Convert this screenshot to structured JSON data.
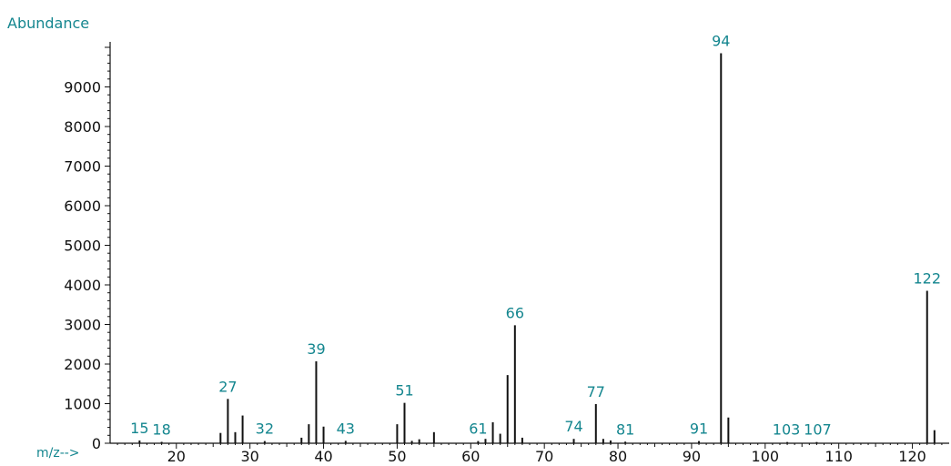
{
  "chart_data": {
    "type": "bar",
    "ylabel": "Abundance",
    "xlabel": "m/z-->",
    "xlim": [
      11,
      125
    ],
    "ylim": [
      0,
      10000
    ],
    "x_ticks": [
      "20",
      "30",
      "40",
      "50",
      "60",
      "70",
      "80",
      "90",
      "100",
      "110",
      "120"
    ],
    "y_ticks": [
      "0",
      "1000",
      "2000",
      "3000",
      "4000",
      "5000",
      "6000",
      "7000",
      "8000",
      "9000"
    ],
    "grid": false,
    "legend": "none",
    "peaks": [
      {
        "x": 15,
        "y": 70,
        "label": "15"
      },
      {
        "x": 18,
        "y": 35,
        "label": "18"
      },
      {
        "x": 26,
        "y": 260
      },
      {
        "x": 27,
        "y": 1120,
        "label": "27"
      },
      {
        "x": 28,
        "y": 280
      },
      {
        "x": 29,
        "y": 700
      },
      {
        "x": 32,
        "y": 55,
        "label": "32"
      },
      {
        "x": 37,
        "y": 140
      },
      {
        "x": 38,
        "y": 480
      },
      {
        "x": 39,
        "y": 2070,
        "label": "39"
      },
      {
        "x": 40,
        "y": 420
      },
      {
        "x": 43,
        "y": 60,
        "label": "43"
      },
      {
        "x": 50,
        "y": 480
      },
      {
        "x": 51,
        "y": 1020,
        "label": "51"
      },
      {
        "x": 52,
        "y": 60
      },
      {
        "x": 53,
        "y": 100
      },
      {
        "x": 55,
        "y": 280
      },
      {
        "x": 61,
        "y": 55,
        "label": "61"
      },
      {
        "x": 62,
        "y": 110
      },
      {
        "x": 63,
        "y": 530
      },
      {
        "x": 64,
        "y": 240
      },
      {
        "x": 65,
        "y": 1720
      },
      {
        "x": 66,
        "y": 2980,
        "label": "66"
      },
      {
        "x": 67,
        "y": 140
      },
      {
        "x": 74,
        "y": 110,
        "label": "74"
      },
      {
        "x": 77,
        "y": 990,
        "label": "77"
      },
      {
        "x": 78,
        "y": 110
      },
      {
        "x": 79,
        "y": 70
      },
      {
        "x": 81,
        "y": 40,
        "label": "81"
      },
      {
        "x": 91,
        "y": 55,
        "label": "91"
      },
      {
        "x": 94,
        "y": 9850,
        "label": "94"
      },
      {
        "x": 95,
        "y": 650
      },
      {
        "x": 103,
        "y": 30,
        "label": "103"
      },
      {
        "x": 107,
        "y": 30,
        "label": "107"
      },
      {
        "x": 122,
        "y": 3850,
        "label": "122"
      },
      {
        "x": 123,
        "y": 330
      }
    ]
  }
}
